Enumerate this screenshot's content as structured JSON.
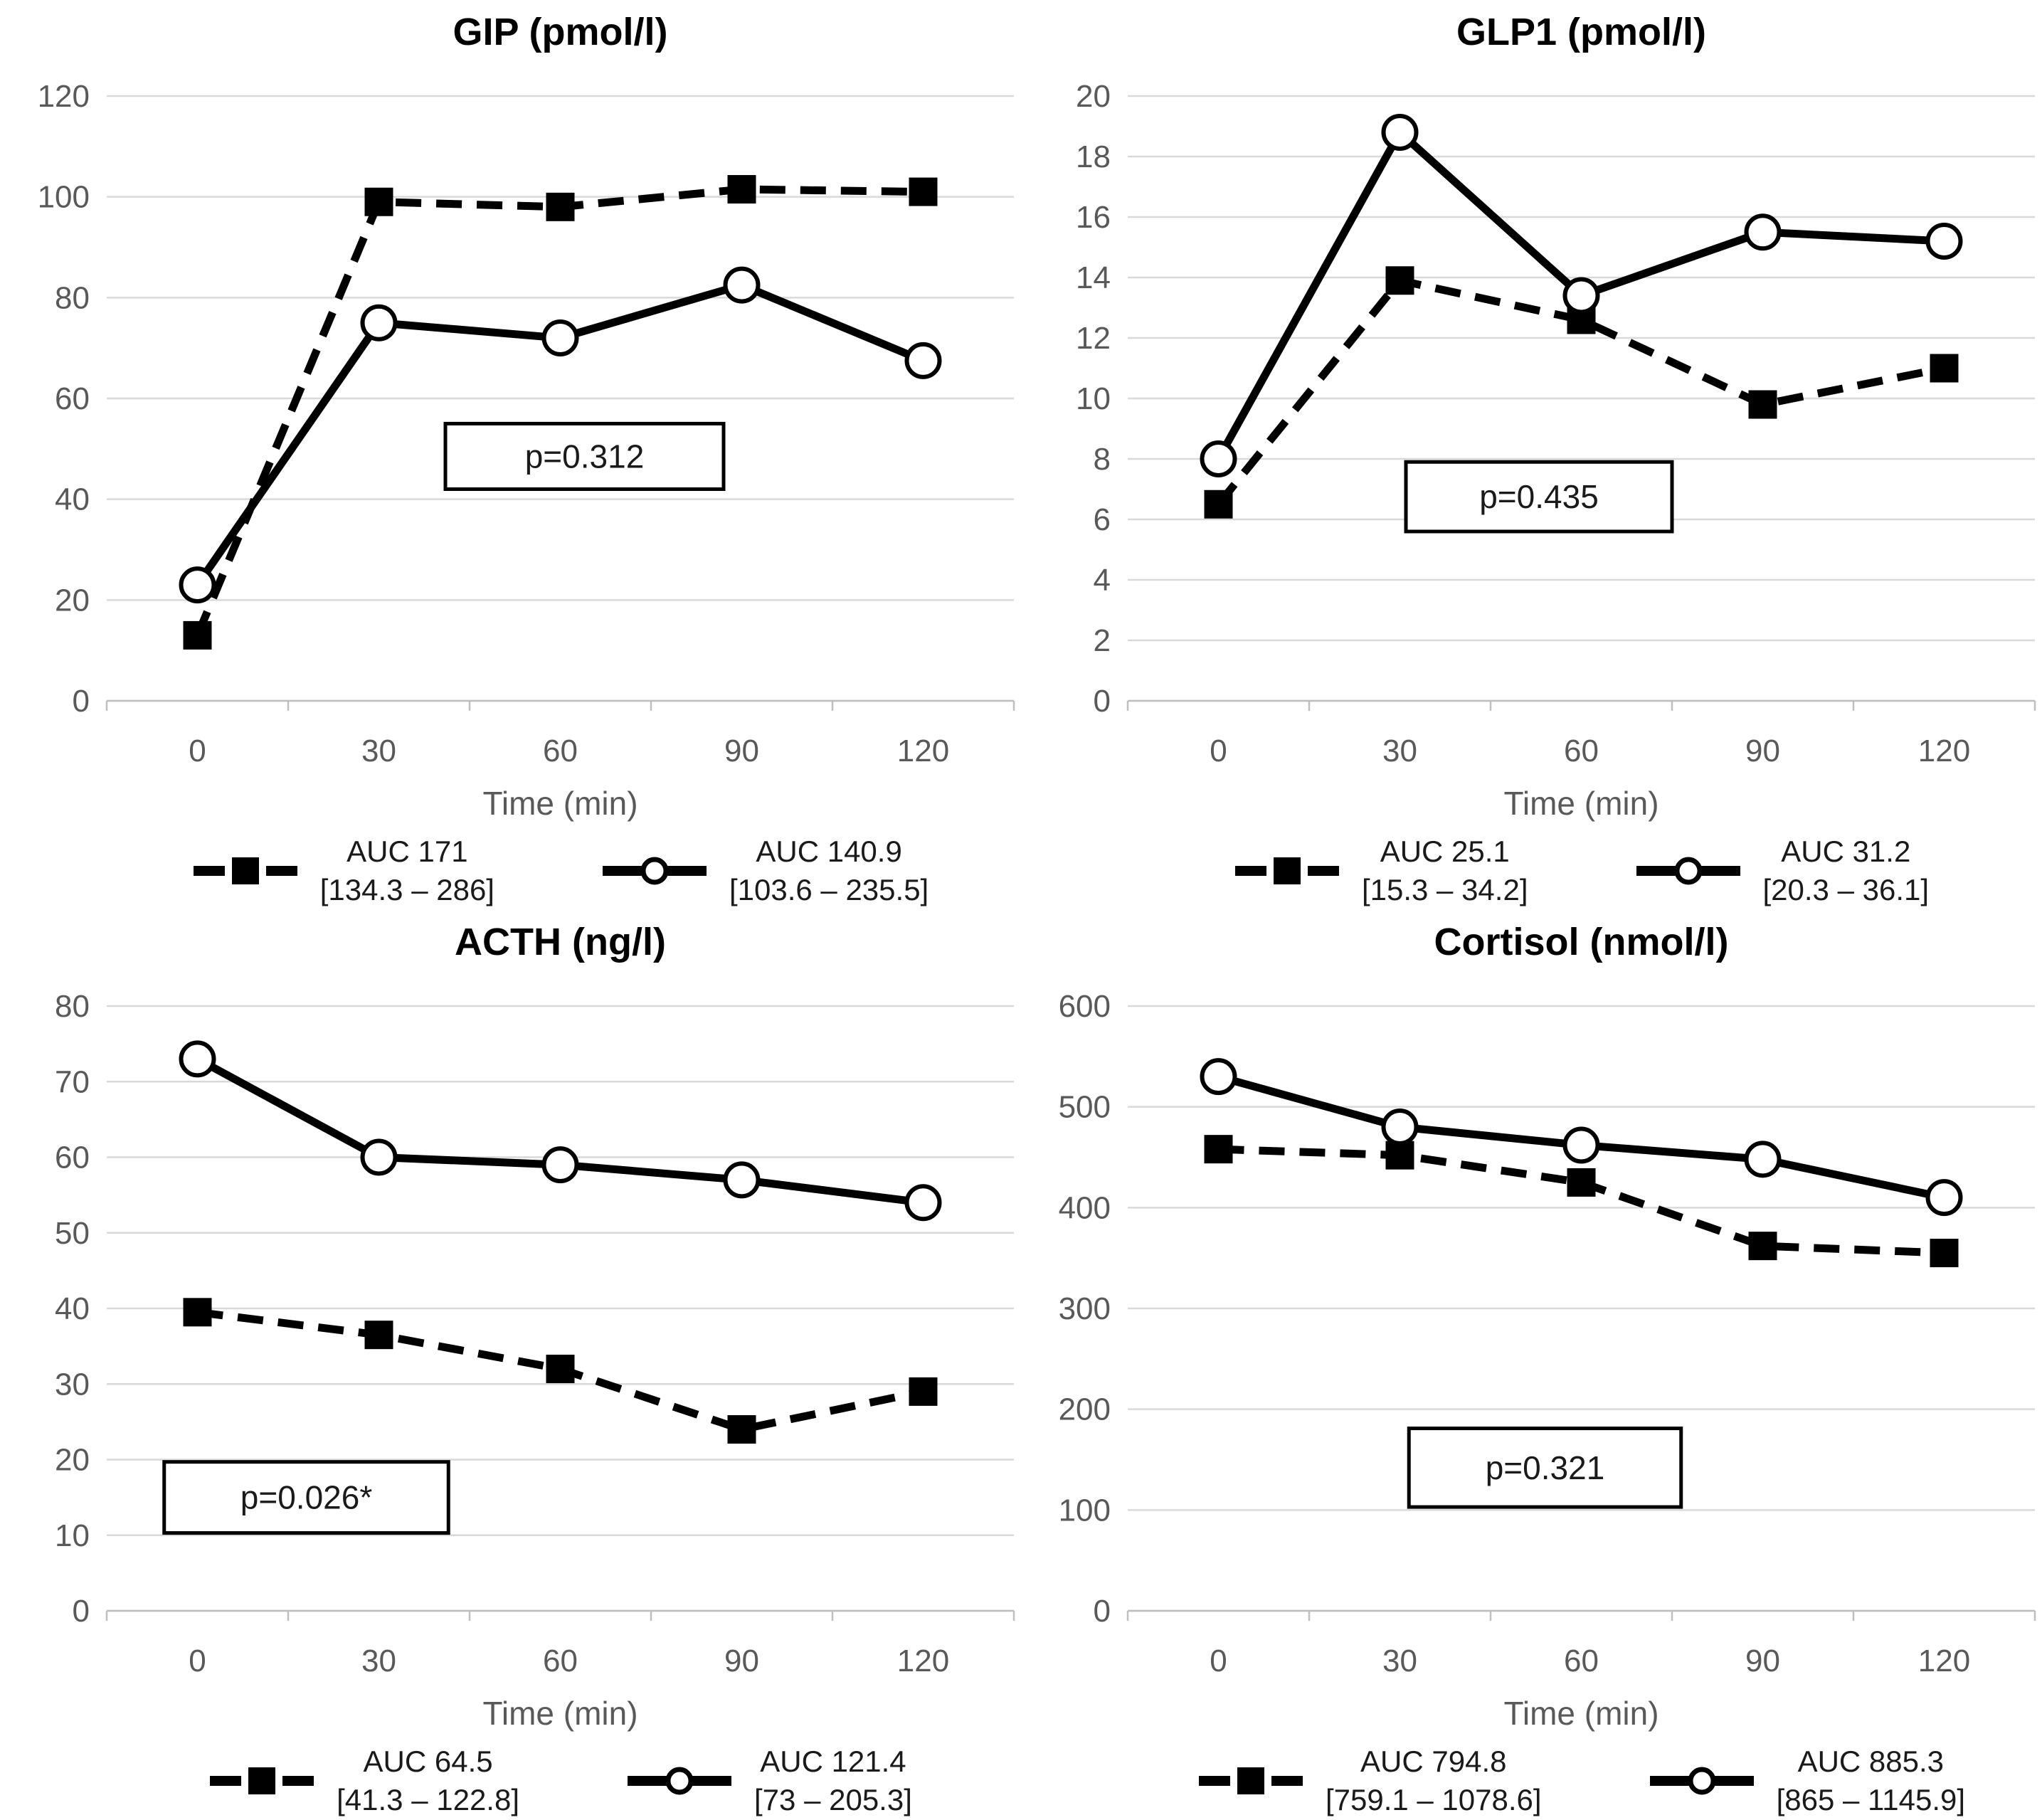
{
  "colors": {
    "series": "#000000",
    "gridline": "#d9d9d9",
    "axis": "#bfbfbf",
    "axis_text": "#595959",
    "title_text": "#000000"
  },
  "chart_data": [
    {
      "id": "gip",
      "type": "line",
      "title": "GIP (pmol/l)",
      "xlabel": "Time (min)",
      "categories": [
        0,
        30,
        60,
        90,
        120
      ],
      "ylim": [
        0,
        120
      ],
      "ytick_step": 20,
      "grid": true,
      "legend_position": "bottom",
      "p_value": {
        "label": "p=0.312",
        "cx": 64,
        "cy": 48.5,
        "half_w": 23,
        "half_h": 6.5
      },
      "series": [
        {
          "name": "AUC 171",
          "range": "[134.3 – 286]",
          "line": "dashed",
          "marker": "square",
          "values": [
            13,
            99,
            98,
            101.5,
            101
          ]
        },
        {
          "name": "AUC 140.9",
          "range": "[103.6 – 235.5]",
          "line": "solid",
          "marker": "circle",
          "values": [
            23,
            75,
            72,
            82.5,
            67.5
          ]
        }
      ]
    },
    {
      "id": "glp1",
      "type": "line",
      "title": "GLP1 (pmol/l)",
      "xlabel": "Time (min)",
      "categories": [
        0,
        30,
        60,
        90,
        120
      ],
      "ylim": [
        0,
        20
      ],
      "ytick_step": 2,
      "grid": true,
      "legend_position": "bottom",
      "p_value": {
        "label": "p=0.435",
        "cx": 53,
        "cy": 6.75,
        "half_w": 22,
        "half_h": 1.15
      },
      "series": [
        {
          "name": "AUC 25.1",
          "range": "[15.3 – 34.2]",
          "line": "dashed",
          "marker": "square",
          "values": [
            6.5,
            13.9,
            12.6,
            9.8,
            11
          ]
        },
        {
          "name": "AUC 31.2",
          "range": "[20.3 – 36.1]",
          "line": "solid",
          "marker": "circle",
          "values": [
            8,
            18.8,
            13.4,
            15.5,
            15.2
          ]
        }
      ]
    },
    {
      "id": "acth",
      "type": "line",
      "title": "ACTH (ng/l)",
      "xlabel": "Time (min)",
      "categories": [
        0,
        30,
        60,
        90,
        120
      ],
      "ylim": [
        0,
        80
      ],
      "ytick_step": 10,
      "grid": true,
      "legend_position": "bottom",
      "p_value": {
        "label": "p=0.026*",
        "cx": 18,
        "cy": 15,
        "half_w": 23.5,
        "half_h": 4.7
      },
      "series": [
        {
          "name": "AUC 64.5",
          "range": "[41.3 – 122.8]",
          "line": "dashed",
          "marker": "square",
          "values": [
            39.5,
            36.5,
            32,
            24,
            29
          ]
        },
        {
          "name": "AUC 121.4",
          "range": "[73 – 205.3]",
          "line": "solid",
          "marker": "circle",
          "values": [
            73,
            60,
            59,
            57,
            54
          ]
        }
      ]
    },
    {
      "id": "cortisol",
      "type": "line",
      "title": "Cortisol (nmol/l)",
      "xlabel": "Time (min)",
      "categories": [
        0,
        30,
        60,
        90,
        120
      ],
      "ylim": [
        0,
        600
      ],
      "ytick_step": 100,
      "grid": true,
      "legend_position": "bottom",
      "p_value": {
        "label": "p=0.321",
        "cx": 54,
        "cy": 142,
        "half_w": 22.5,
        "half_h": 39
      },
      "series": [
        {
          "name": "AUC 794.8",
          "range": "[759.1 – 1078.6]",
          "line": "dashed",
          "marker": "square",
          "values": [
            458,
            452,
            425,
            362,
            355
          ]
        },
        {
          "name": "AUC 885.3",
          "range": "[865 – 1145.9]",
          "line": "solid",
          "marker": "circle",
          "values": [
            530,
            480,
            462,
            448,
            410
          ]
        }
      ]
    }
  ]
}
